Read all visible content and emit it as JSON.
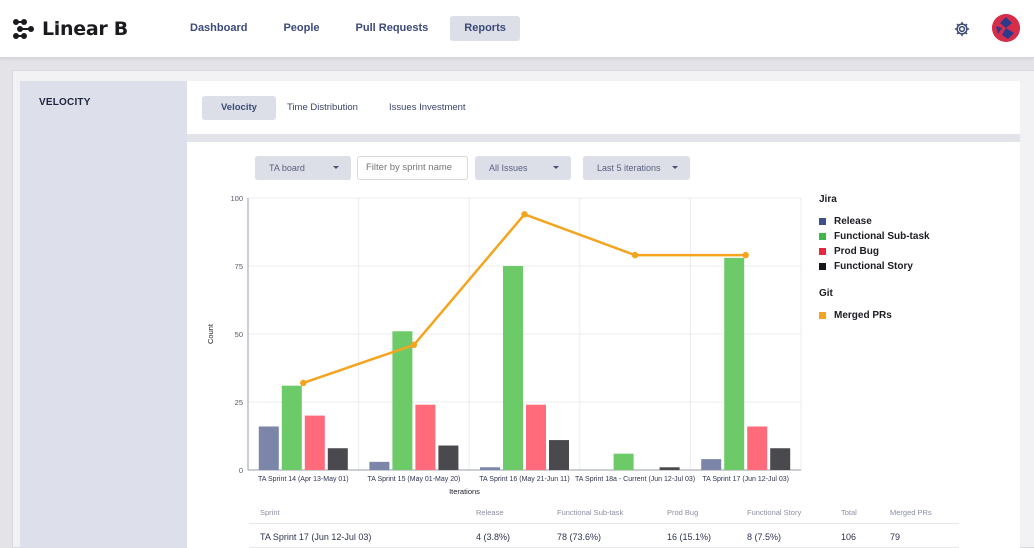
{
  "app": {
    "name": "Linear B"
  },
  "nav": {
    "items": [
      {
        "label": "Dashboard"
      },
      {
        "label": "People"
      },
      {
        "label": "Pull Requests"
      },
      {
        "label": "Reports"
      }
    ],
    "active": "Reports"
  },
  "icons": {
    "settings": "gear-icon",
    "avatar": "avatar"
  },
  "sidebar": {
    "title": "VELOCITY"
  },
  "tabs": [
    {
      "label": "Velocity"
    },
    {
      "label": "Time Distribution"
    },
    {
      "label": "Issues Investment"
    }
  ],
  "filters": {
    "board": "TA board",
    "sprint_placeholder": "Filter by sprint name",
    "issues": "All Issues",
    "iterations": "Last 5 iterations"
  },
  "colors": {
    "release": "#7b86a8",
    "functional_subtask": "#6ccb68",
    "prod_bug": "#ff6b7a",
    "functional_story": "#4a4a4e",
    "merged_prs": "#f4a41e"
  },
  "chart_data": {
    "type": "bar",
    "categories": [
      "TA Sprint 14 (Apr 13-May 01)",
      "TA Sprint 15 (May 01-May 20)",
      "TA Sprint 16 (May 21-Jun 11)",
      "TA Sprint 18a - Current (Jun 12-Jul 03)",
      "TA Sprint 17 (Jun 12-Jul 03)"
    ],
    "series": [
      {
        "name": "Release",
        "values": [
          16,
          3,
          1,
          0,
          4
        ]
      },
      {
        "name": "Functional Sub-task",
        "values": [
          31,
          51,
          75,
          6,
          78
        ]
      },
      {
        "name": "Prod Bug",
        "values": [
          20,
          24,
          24,
          0,
          16
        ]
      },
      {
        "name": "Functional Story",
        "values": [
          8,
          9,
          11,
          1,
          8
        ]
      }
    ],
    "line_series": {
      "name": "Merged PRs",
      "values": [
        32,
        46,
        94,
        79,
        79
      ]
    },
    "xlabel": "Iterations",
    "ylabel": "Count",
    "ylim": [
      0,
      100
    ],
    "yticks": [
      0,
      25,
      50,
      75,
      100
    ],
    "grid": true,
    "legend": {
      "placement": "right",
      "groups": [
        {
          "title": "Jira",
          "items": [
            "Release",
            "Functional Sub-task",
            "Prod Bug",
            "Functional Story"
          ]
        },
        {
          "title": "Git",
          "items": [
            "Merged PRs"
          ]
        }
      ]
    }
  },
  "table": {
    "headers": [
      "Sprint",
      "Release",
      "Functional Sub-task",
      "Prod Bug",
      "Functional Story",
      "Total",
      "Merged PRs"
    ],
    "rows": [
      [
        "TA Sprint 17 (Jun 12-Jul 03)",
        "4 (3.8%)",
        "78 (73.6%)",
        "16 (15.1%)",
        "8 (7.5%)",
        "106",
        "79"
      ]
    ]
  }
}
